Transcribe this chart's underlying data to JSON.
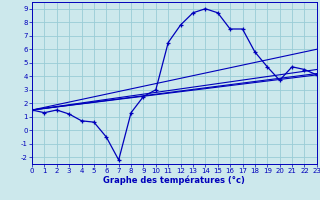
{
  "xlabel": "Graphe des températures (°c)",
  "background_color": "#cce8ec",
  "grid_color": "#99ccd6",
  "line_color": "#0000bb",
  "xlim": [
    0,
    23
  ],
  "ylim": [
    -2.5,
    9.5
  ],
  "xticks": [
    0,
    1,
    2,
    3,
    4,
    5,
    6,
    7,
    8,
    9,
    10,
    11,
    12,
    13,
    14,
    15,
    16,
    17,
    18,
    19,
    20,
    21,
    22,
    23
  ],
  "yticks": [
    -2,
    -1,
    0,
    1,
    2,
    3,
    4,
    5,
    6,
    7,
    8,
    9
  ],
  "line1_x": [
    0,
    1,
    2,
    3,
    4,
    5,
    6,
    7,
    8,
    9,
    10,
    11,
    12,
    13,
    14,
    15,
    16,
    17,
    18,
    19,
    20,
    21,
    22,
    23
  ],
  "line1_y": [
    1.5,
    1.3,
    1.5,
    1.2,
    0.7,
    0.6,
    -0.5,
    -2.2,
    1.3,
    2.5,
    3.0,
    6.5,
    7.8,
    8.7,
    9.0,
    8.7,
    7.5,
    7.5,
    5.8,
    4.7,
    3.7,
    4.7,
    4.5,
    4.1
  ],
  "line2_x": [
    0,
    23
  ],
  "line2_y": [
    1.5,
    6.0
  ],
  "line3_x": [
    0,
    23
  ],
  "line3_y": [
    1.5,
    4.5
  ],
  "line4_x": [
    0,
    23
  ],
  "line4_y": [
    1.5,
    4.2
  ],
  "line5_x": [
    0,
    23
  ],
  "line5_y": [
    1.5,
    4.1
  ]
}
